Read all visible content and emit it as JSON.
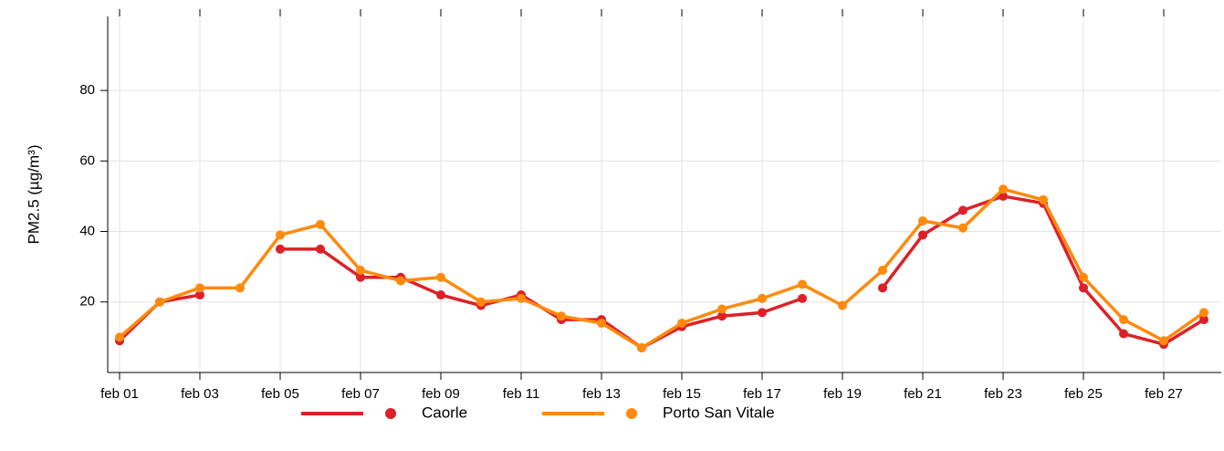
{
  "chart_data": {
    "type": "line",
    "ylabel": "PM2.5 (µg/m³)",
    "categories": [
      "feb 01",
      null,
      "feb 03",
      null,
      "feb 05",
      null,
      "feb 07",
      null,
      "feb 09",
      null,
      "feb 11",
      null,
      "feb 13",
      null,
      "feb 15",
      null,
      "feb 17",
      null,
      "feb 19",
      null,
      "feb 21",
      null,
      "feb 23",
      null,
      "feb 25",
      null,
      "feb 27",
      null
    ],
    "series": [
      {
        "name": "Caorle",
        "color": "#dd2027",
        "values": [
          9,
          20,
          22,
          null,
          35,
          35,
          27,
          27,
          22,
          19,
          22,
          15,
          15,
          7,
          13,
          16,
          17,
          21,
          null,
          24,
          39,
          46,
          50,
          48,
          24,
          11,
          8,
          15
        ]
      },
      {
        "name": "Porto San Vitale",
        "color": "#ff8a0d",
        "values": [
          10,
          20,
          24,
          24,
          39,
          42,
          29,
          26,
          27,
          20,
          21,
          16,
          14,
          7,
          14,
          18,
          21,
          25,
          19,
          29,
          43,
          41,
          52,
          49,
          27,
          15,
          9,
          17
        ]
      }
    ],
    "ylim": [
      0,
      101
    ],
    "yticks": [
      20,
      40,
      60,
      80
    ],
    "grid": true,
    "legend": "bottom"
  }
}
